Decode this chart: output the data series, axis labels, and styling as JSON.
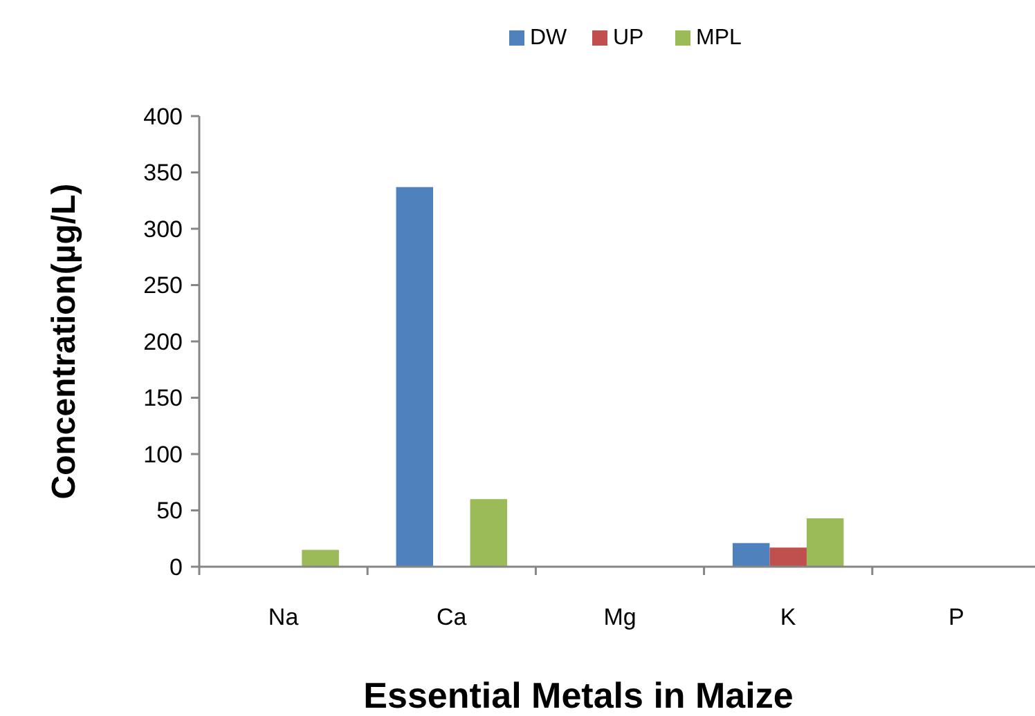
{
  "chart_data": {
    "type": "bar",
    "xlabel": "Essential Metals in Maize",
    "ylabel": "Concentration(µg/L)",
    "categories": [
      "Na",
      "Ca",
      "Mg",
      "K",
      "P"
    ],
    "series": [
      {
        "name": "DW",
        "color": "#4f81bd",
        "values": [
          0,
          337,
          0,
          21,
          0
        ]
      },
      {
        "name": "UP",
        "color": "#c0504d",
        "values": [
          0,
          0,
          0,
          17,
          0
        ]
      },
      {
        "name": "MPL",
        "color": "#9bbb59",
        "values": [
          15,
          60,
          0,
          43,
          0
        ]
      }
    ],
    "ylim": [
      0,
      400
    ],
    "yticks": [
      0,
      50,
      100,
      150,
      200,
      250,
      300,
      350,
      400
    ],
    "grid": false,
    "legend": "top"
  }
}
